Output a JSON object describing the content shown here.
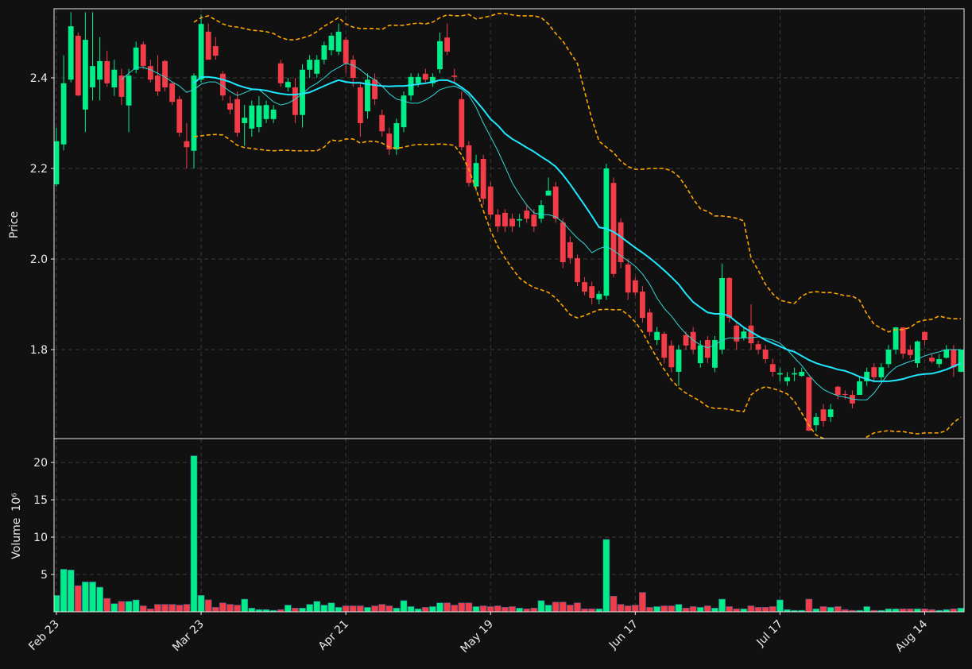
{
  "chart_data": {
    "type": "candlestick",
    "y_label": "Price",
    "volume_label": "Volume",
    "volume_unit": "10⁶",
    "grid": true,
    "up_color": "#00ee88",
    "down_color": "#f23c48",
    "ylim": [
      1.6035,
      2.5526
    ],
    "yticks": [
      1.8,
      {
        "value": 2,
        "label": "2.0"
      },
      2.2,
      2.4
    ],
    "volume_ylim": [
      0,
      23.2
    ],
    "volume_yticks": [
      5,
      10,
      15,
      20
    ],
    "categories": [
      "Feb 23",
      null,
      null,
      null,
      null,
      null,
      null,
      null,
      null,
      null,
      null,
      null,
      null,
      null,
      null,
      null,
      null,
      null,
      null,
      null,
      "Mar 23",
      null,
      null,
      null,
      null,
      null,
      null,
      null,
      null,
      null,
      null,
      null,
      null,
      null,
      null,
      null,
      null,
      null,
      null,
      null,
      "Apr 21",
      null,
      null,
      null,
      null,
      null,
      null,
      null,
      null,
      null,
      null,
      null,
      null,
      null,
      null,
      null,
      null,
      null,
      null,
      null,
      "May 19",
      null,
      null,
      null,
      null,
      null,
      null,
      null,
      null,
      null,
      null,
      null,
      null,
      null,
      null,
      null,
      null,
      null,
      null,
      null,
      "Jun 17",
      null,
      null,
      null,
      null,
      null,
      null,
      null,
      null,
      null,
      null,
      null,
      null,
      null,
      null,
      null,
      null,
      null,
      null,
      null,
      "Jul 17",
      null,
      null,
      null,
      null,
      null,
      null,
      null,
      null,
      null,
      null,
      null,
      null,
      null,
      null,
      null,
      null,
      null,
      null,
      null,
      "Aug 14",
      null,
      null,
      null,
      null,
      null
    ],
    "open": [
      2.165,
      2.253,
      2.396,
      2.493,
      2.33,
      2.379,
      2.396,
      2.437,
      2.379,
      2.405,
      2.339,
      2.418,
      2.474,
      2.426,
      2.405,
      2.437,
      2.388,
      2.353,
      2.26,
      2.239,
      2.396,
      2.502,
      2.47,
      2.409,
      2.344,
      2.353,
      2.3,
      2.288,
      2.291,
      2.309,
      2.309,
      2.432,
      2.379,
      2.379,
      2.318,
      2.418,
      2.409,
      2.44,
      2.461,
      2.458,
      2.484,
      2.44,
      2.379,
      2.326,
      2.396,
      2.318,
      2.277,
      2.242,
      2.291,
      2.361,
      2.388,
      2.409,
      2.388,
      2.419,
      2.489,
      2.405,
      2.353,
      2.251,
      2.16,
      2.221,
      2.16,
      2.098,
      2.102,
      2.089,
      2.085,
      2.107,
      2.098,
      2.089,
      2.14,
      2.16,
      2.081,
      2.037,
      2.002,
      1.949,
      1.94,
      1.911,
      1.919,
      2.168,
      2.081,
      1.988,
      1.953,
      1.928,
      1.882,
      1.821,
      1.835,
      1.809,
      1.751,
      1.832,
      1.839,
      1.77,
      1.821,
      1.76,
      1.8,
      1.958,
      1.853,
      1.826,
      1.853,
      1.812,
      1.8,
      1.768,
      1.745,
      1.73,
      1.745,
      1.742,
      1.739,
      1.633,
      1.668,
      1.651,
      1.718,
      1.702,
      1.7,
      1.7,
      1.73,
      1.761,
      1.739,
      1.768,
      1.8,
      1.849,
      1.8,
      1.77,
      1.839,
      1.782,
      1.768,
      1.782,
      1.8,
      1.751
    ],
    "high": [
      2.29,
      2.45,
      2.545,
      2.5,
      2.545,
      2.545,
      2.49,
      2.46,
      2.44,
      2.42,
      2.42,
      2.48,
      2.48,
      2.44,
      2.45,
      2.44,
      2.39,
      2.36,
      2.3,
      2.41,
      2.54,
      2.52,
      2.49,
      2.415,
      2.36,
      2.37,
      2.34,
      2.35,
      2.36,
      2.35,
      2.34,
      2.44,
      2.4,
      2.4,
      2.43,
      2.45,
      2.45,
      2.48,
      2.5,
      2.52,
      2.49,
      2.45,
      2.39,
      2.41,
      2.41,
      2.33,
      2.29,
      2.31,
      2.37,
      2.41,
      2.41,
      2.42,
      2.41,
      2.5,
      2.52,
      2.42,
      2.37,
      2.26,
      2.23,
      2.23,
      2.17,
      2.11,
      2.11,
      2.1,
      2.1,
      2.12,
      2.11,
      2.13,
      2.18,
      2.17,
      2.09,
      2.05,
      2.01,
      1.96,
      1.95,
      1.93,
      2.21,
      2.18,
      2.09,
      2.0,
      1.96,
      1.94,
      1.89,
      1.85,
      1.84,
      1.82,
      1.81,
      1.84,
      1.85,
      1.82,
      1.83,
      1.83,
      1.99,
      1.96,
      1.86,
      1.85,
      1.9,
      1.82,
      1.81,
      1.78,
      1.76,
      1.75,
      1.76,
      1.76,
      1.74,
      1.66,
      1.68,
      1.68,
      1.72,
      1.71,
      1.71,
      1.74,
      1.76,
      1.77,
      1.77,
      1.81,
      1.85,
      1.85,
      1.81,
      1.82,
      1.84,
      1.79,
      1.79,
      1.81,
      1.81,
      1.8
    ],
    "low": [
      2.16,
      2.24,
      2.39,
      2.36,
      2.28,
      2.35,
      2.35,
      2.38,
      2.36,
      2.34,
      2.28,
      2.41,
      2.42,
      2.39,
      2.36,
      2.37,
      2.34,
      2.27,
      2.2,
      2.2,
      2.39,
      2.44,
      2.44,
      2.35,
      2.32,
      2.27,
      2.25,
      2.27,
      2.28,
      2.3,
      2.3,
      2.38,
      2.37,
      2.3,
      2.29,
      2.4,
      2.4,
      2.43,
      2.45,
      2.45,
      2.41,
      2.38,
      2.27,
      2.31,
      2.34,
      2.27,
      2.23,
      2.23,
      2.28,
      2.35,
      2.38,
      2.39,
      2.38,
      2.41,
      2.45,
      2.39,
      2.24,
      2.16,
      2.15,
      2.12,
      2.09,
      2.06,
      2.06,
      2.06,
      2.07,
      2.08,
      2.06,
      2.08,
      2.14,
      2.08,
      1.98,
      1.99,
      1.94,
      1.92,
      1.9,
      1.9,
      1.91,
      1.96,
      1.98,
      1.91,
      1.92,
      1.86,
      1.83,
      1.81,
      1.77,
      1.75,
      1.72,
      1.8,
      1.79,
      1.76,
      1.77,
      1.75,
      1.79,
      1.86,
      1.8,
      1.82,
      1.8,
      1.79,
      1.77,
      1.74,
      1.73,
      1.72,
      1.73,
      1.74,
      1.62,
      1.62,
      1.63,
      1.64,
      1.69,
      1.69,
      1.67,
      1.7,
      1.72,
      1.73,
      1.73,
      1.76,
      1.79,
      1.78,
      1.78,
      1.76,
      1.81,
      1.77,
      1.76,
      1.78,
      1.74,
      1.75
    ],
    "close": [
      2.26,
      2.388,
      2.514,
      2.361,
      2.484,
      2.426,
      2.437,
      2.388,
      2.418,
      2.358,
      2.405,
      2.467,
      2.426,
      2.396,
      2.37,
      2.379,
      2.347,
      2.279,
      2.247,
      2.405,
      2.519,
      2.44,
      2.449,
      2.361,
      2.33,
      2.279,
      2.312,
      2.339,
      2.339,
      2.34,
      2.33,
      2.388,
      2.391,
      2.318,
      2.418,
      2.44,
      2.44,
      2.472,
      2.493,
      2.502,
      2.432,
      2.4,
      2.3,
      2.396,
      2.353,
      2.282,
      2.242,
      2.3,
      2.361,
      2.402,
      2.402,
      2.396,
      2.402,
      2.481,
      2.458,
      2.402,
      2.247,
      2.168,
      2.212,
      2.133,
      2.098,
      2.072,
      2.072,
      2.072,
      2.088,
      2.089,
      2.072,
      2.119,
      2.151,
      2.089,
      1.993,
      2.002,
      1.949,
      1.928,
      1.914,
      1.923,
      2.2,
      1.967,
      1.993,
      1.926,
      1.926,
      1.87,
      1.839,
      1.839,
      1.782,
      1.761,
      1.8,
      1.809,
      1.8,
      1.809,
      1.782,
      1.821,
      1.958,
      1.87,
      1.818,
      1.84,
      1.814,
      1.8,
      1.779,
      1.751,
      1.748,
      1.739,
      1.748,
      1.751,
      1.621,
      1.651,
      1.642,
      1.668,
      1.7,
      1.7,
      1.681,
      1.73,
      1.751,
      1.739,
      1.761,
      1.8,
      1.849,
      1.791,
      1.788,
      1.818,
      1.821,
      1.774,
      1.779,
      1.8,
      1.761,
      1.8
    ],
    "volume": [
      2.2,
      5.7,
      5.6,
      3.5,
      4.0,
      4.0,
      3.3,
      1.8,
      1.1,
      1.4,
      1.4,
      1.6,
      0.8,
      0.4,
      1.0,
      1.0,
      1.0,
      0.9,
      1.0,
      20.9,
      2.2,
      1.6,
      0.6,
      1.2,
      1.0,
      0.9,
      1.7,
      0.5,
      0.3,
      0.3,
      0.2,
      0.3,
      0.9,
      0.5,
      0.5,
      1.0,
      1.4,
      0.9,
      1.2,
      0.6,
      0.8,
      0.8,
      0.8,
      0.6,
      0.8,
      1.0,
      0.8,
      0.5,
      1.5,
      0.7,
      0.4,
      0.6,
      0.7,
      1.2,
      1.2,
      0.9,
      1.2,
      1.2,
      0.7,
      0.8,
      0.7,
      0.8,
      0.6,
      0.7,
      0.5,
      0.4,
      0.5,
      1.5,
      0.9,
      1.3,
      1.3,
      0.9,
      1.2,
      0.4,
      0.4,
      0.4,
      9.7,
      2.1,
      1.0,
      0.8,
      0.9,
      2.6,
      0.6,
      0.7,
      0.8,
      0.8,
      1.0,
      0.5,
      0.7,
      0.6,
      0.8,
      0.5,
      1.7,
      0.7,
      0.4,
      0.4,
      0.8,
      0.6,
      0.6,
      0.7,
      1.6,
      0.3,
      0.2,
      0.2,
      1.7,
      0.4,
      0.7,
      0.6,
      0.7,
      0.3,
      0.2,
      0.2,
      0.7,
      0.2,
      0.2,
      0.4,
      0.4,
      0.4,
      0.4,
      0.4,
      0.4,
      0.3,
      0.2,
      0.3,
      0.4,
      0.5
    ],
    "series": [
      {
        "color": "#33d6d6",
        "width": 1,
        "dashed": false,
        "values": [
          null,
          null,
          null,
          null,
          null,
          null,
          null,
          null,
          null,
          2.396,
          2.41,
          2.423,
          2.423,
          2.418,
          2.41,
          2.402,
          2.391,
          2.382,
          2.368,
          2.374,
          2.386,
          2.391,
          2.391,
          2.382,
          2.37,
          2.361,
          2.367,
          2.374,
          2.374,
          2.361,
          2.347,
          2.34,
          2.344,
          2.353,
          2.365,
          2.379,
          2.388,
          2.4,
          2.414,
          2.423,
          2.432,
          2.428,
          2.418,
          2.405,
          2.396,
          2.382,
          2.365,
          2.353,
          2.349,
          2.344,
          2.344,
          2.351,
          2.361,
          2.374,
          2.379,
          2.382,
          2.375,
          2.361,
          2.335,
          2.3,
          2.27,
          2.239,
          2.204,
          2.168,
          2.142,
          2.119,
          2.102,
          2.098,
          2.098,
          2.093,
          2.081,
          2.063,
          2.046,
          2.033,
          2.014,
          2.023,
          2.028,
          2.019,
          2.007,
          1.996,
          1.984,
          1.967,
          1.944,
          1.914,
          1.891,
          1.874,
          1.853,
          1.835,
          1.821,
          1.81,
          1.804,
          1.81,
          1.821,
          1.826,
          1.825,
          1.826,
          1.826,
          1.828,
          1.825,
          1.821,
          1.814,
          1.8,
          1.782,
          1.765,
          1.744,
          1.726,
          1.712,
          1.704,
          1.698,
          1.695,
          1.691,
          1.689,
          1.689,
          1.704,
          1.726,
          1.747,
          1.761,
          1.768,
          1.774,
          1.779,
          1.786,
          1.791,
          1.795,
          1.8,
          1.8,
          1.8
        ]
      },
      {
        "color": "#1ee8ff",
        "width": 2,
        "dashed": false,
        "values": [
          null,
          null,
          null,
          null,
          null,
          null,
          null,
          null,
          null,
          null,
          null,
          null,
          null,
          null,
          null,
          null,
          null,
          null,
          null,
          2.388,
          2.402,
          2.402,
          2.4,
          2.396,
          2.391,
          2.384,
          2.379,
          2.375,
          2.374,
          2.372,
          2.368,
          2.365,
          2.363,
          2.363,
          2.365,
          2.368,
          2.375,
          2.382,
          2.389,
          2.395,
          2.391,
          2.389,
          2.389,
          2.386,
          2.384,
          2.382,
          2.381,
          2.382,
          2.382,
          2.384,
          2.386,
          2.388,
          2.391,
          2.395,
          2.395,
          2.389,
          2.379,
          2.367,
          2.349,
          2.33,
          2.309,
          2.295,
          2.277,
          2.265,
          2.256,
          2.246,
          2.237,
          2.226,
          2.216,
          2.204,
          2.186,
          2.165,
          2.142,
          2.119,
          2.095,
          2.07,
          2.067,
          2.06,
          2.049,
          2.037,
          2.025,
          2.014,
          2.002,
          1.989,
          1.975,
          1.96,
          1.944,
          1.923,
          1.905,
          1.893,
          1.882,
          1.879,
          1.879,
          1.874,
          1.861,
          1.849,
          1.839,
          1.83,
          1.821,
          1.814,
          1.807,
          1.8,
          1.795,
          1.786,
          1.777,
          1.77,
          1.765,
          1.761,
          1.756,
          1.753,
          1.747,
          1.74,
          1.735,
          1.73,
          1.73,
          1.73,
          1.732,
          1.735,
          1.74,
          1.744,
          1.746,
          1.747,
          1.751,
          1.756,
          1.763,
          1.77
        ]
      },
      {
        "color": "#ffa500",
        "width": 1.6,
        "dashed": true,
        "values": [
          null,
          null,
          null,
          null,
          null,
          null,
          null,
          null,
          null,
          null,
          null,
          null,
          null,
          null,
          null,
          null,
          null,
          null,
          null,
          2.523,
          2.533,
          2.537,
          2.528,
          2.519,
          2.514,
          2.512,
          2.509,
          2.505,
          2.504,
          2.502,
          2.498,
          2.489,
          2.484,
          2.484,
          2.488,
          2.493,
          2.502,
          2.514,
          2.523,
          2.533,
          2.519,
          2.512,
          2.509,
          2.509,
          2.509,
          2.507,
          2.516,
          2.516,
          2.516,
          2.519,
          2.521,
          2.519,
          2.523,
          2.533,
          2.539,
          2.537,
          2.537,
          2.54,
          2.53,
          2.533,
          2.537,
          2.542,
          2.542,
          2.539,
          2.537,
          2.537,
          2.537,
          2.533,
          2.519,
          2.498,
          2.481,
          2.456,
          2.432,
          2.37,
          2.309,
          2.26,
          2.247,
          2.235,
          2.216,
          2.204,
          2.198,
          2.198,
          2.2,
          2.2,
          2.2,
          2.195,
          2.182,
          2.16,
          2.133,
          2.111,
          2.105,
          2.095,
          2.095,
          2.093,
          2.09,
          2.084,
          2.002,
          1.975,
          1.944,
          1.923,
          1.909,
          1.905,
          1.902,
          1.918,
          1.926,
          1.928,
          1.926,
          1.926,
          1.923,
          1.919,
          1.918,
          1.909,
          1.879,
          1.856,
          1.847,
          1.839,
          1.844,
          1.844,
          1.849,
          1.861,
          1.865,
          1.867,
          1.874,
          1.87,
          1.868,
          1.868
        ]
      },
      {
        "color": "#ffa500",
        "width": 1.6,
        "dashed": true,
        "values": [
          null,
          null,
          null,
          null,
          null,
          null,
          null,
          null,
          null,
          null,
          null,
          null,
          null,
          null,
          null,
          null,
          null,
          null,
          null,
          2.27,
          2.272,
          2.274,
          2.275,
          2.274,
          2.263,
          2.251,
          2.246,
          2.244,
          2.242,
          2.24,
          2.239,
          2.24,
          2.24,
          2.239,
          2.239,
          2.239,
          2.239,
          2.247,
          2.263,
          2.26,
          2.265,
          2.265,
          2.256,
          2.26,
          2.26,
          2.256,
          2.247,
          2.244,
          2.247,
          2.251,
          2.253,
          2.253,
          2.253,
          2.254,
          2.253,
          2.251,
          2.23,
          2.198,
          2.154,
          2.107,
          2.063,
          2.028,
          2.002,
          1.979,
          1.958,
          1.946,
          1.937,
          1.932,
          1.926,
          1.914,
          1.896,
          1.877,
          1.87,
          1.875,
          1.882,
          1.888,
          1.889,
          1.888,
          1.888,
          1.877,
          1.861,
          1.839,
          1.809,
          1.782,
          1.756,
          1.733,
          1.716,
          1.704,
          1.695,
          1.686,
          1.674,
          1.67,
          1.67,
          1.668,
          1.665,
          1.663,
          1.7,
          1.712,
          1.718,
          1.714,
          1.709,
          1.702,
          1.686,
          1.66,
          1.633,
          1.611,
          1.604,
          1.598,
          1.59,
          1.585,
          1.585,
          1.595,
          1.607,
          1.616,
          1.619,
          1.621,
          1.619,
          1.619,
          1.616,
          1.614,
          1.616,
          1.616,
          1.616,
          1.621,
          1.639,
          1.651
        ]
      }
    ]
  }
}
